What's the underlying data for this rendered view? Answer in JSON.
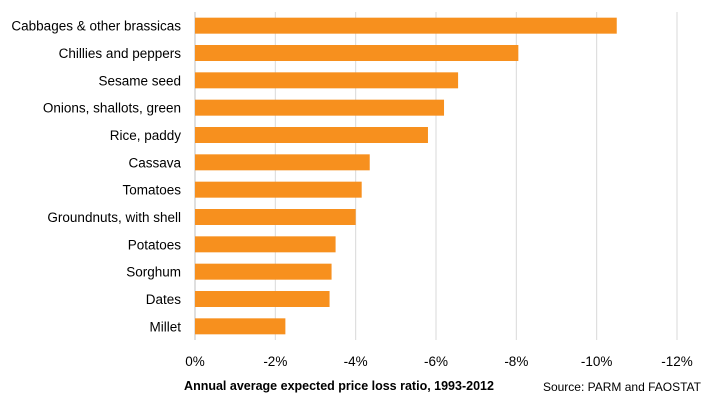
{
  "chart_data": {
    "type": "bar",
    "orientation": "horizontal",
    "categories": [
      "Cabbages & other brassicas",
      "Chillies and peppers",
      "Sesame seed",
      "Onions, shallots, green",
      "Rice, paddy",
      "Cassava",
      "Tomatoes",
      "Groundnuts, with shell",
      "Potatoes",
      "Sorghum",
      "Dates",
      "Millet"
    ],
    "values": [
      -10.5,
      -8.05,
      -6.55,
      -6.2,
      -5.8,
      -4.35,
      -4.15,
      -4.0,
      -3.5,
      -3.4,
      -3.35,
      -2.25
    ],
    "title": "",
    "xlabel": "Annual average expected price loss ratio, 1993-2012",
    "ylabel": "",
    "xlim": [
      0,
      -12
    ],
    "xticks": [
      0,
      -2,
      -4,
      -6,
      -8,
      -10,
      -12
    ],
    "xtick_labels": [
      "0%",
      "-2%",
      "-4%",
      "-6%",
      "-8%",
      "-10%",
      "-12%"
    ],
    "grid": "vertical",
    "legend": "none",
    "bar_color": "#F7901E",
    "grid_color": "#D9D9D9",
    "source": "Source: PARM and FAOSTAT"
  }
}
